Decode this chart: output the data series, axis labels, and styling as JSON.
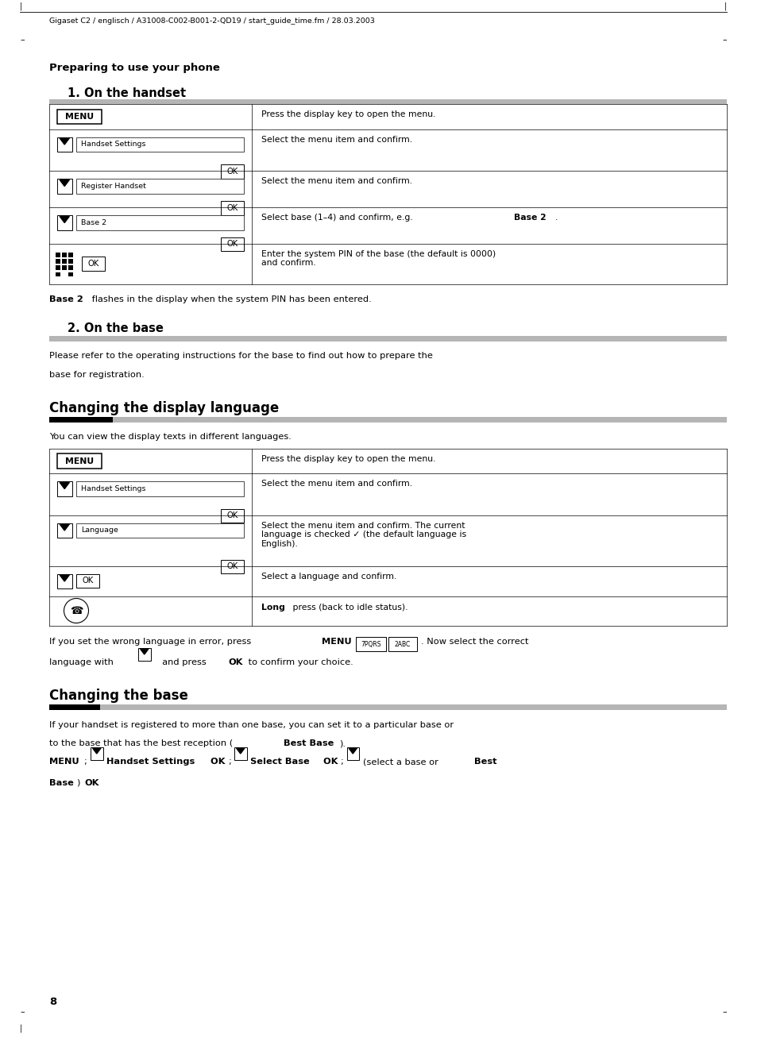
{
  "bg_color": "#ffffff",
  "page_width": 9.54,
  "page_height": 13.07,
  "header_text": "Gigaset C2 / englisch / A31008-C002-B001-2-QD19 / start_guide_time.fm / 28.03.2003",
  "section_title": "Preparing to use your phone",
  "sub1_title": "1. On the handset",
  "sub2_title": "2. On the base",
  "sub3_title": "Changing the display language",
  "sub4_title": "Changing the base",
  "base2_note_bold": "Base 2",
  "base2_note_rest": " flashes in the display when the system PIN has been entered.",
  "on_base_text_line1": "Please refer to the operating instructions for the base to find out how to prepare the",
  "on_base_text_line2": "base for registration.",
  "display_lang_intro": "You can view the display texts in different languages.",
  "page_number": "8",
  "gray_bar_color": "#b0b0b0",
  "black_bar_color": "#000000"
}
